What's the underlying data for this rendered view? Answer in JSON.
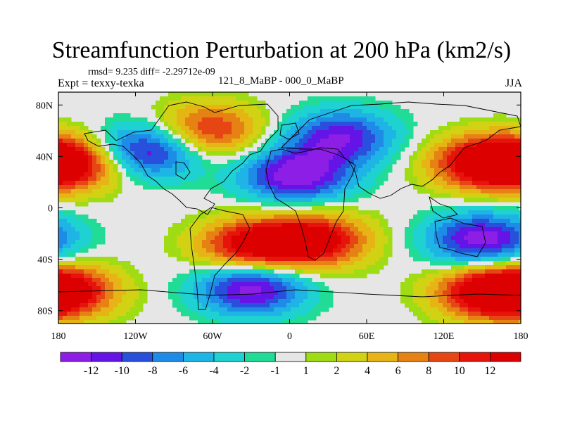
{
  "chart_data": {
    "type": "heatmap",
    "title": "Streamfunction Perturbation at 200 hPa (km2/s)",
    "stats_line": "rmsd= 9.235  diff= -2.29712e-09",
    "left_label": "Expt = texxy-texka",
    "center_label": "121_8_MaBP - 000_0_MaBP",
    "right_label": "JJA",
    "x_ticks": [
      "180",
      "120W",
      "60W",
      "0",
      "60E",
      "120E",
      "180"
    ],
    "y_ticks": [
      "80N",
      "40N",
      "0",
      "40S",
      "80S"
    ],
    "xlim": [
      -180,
      180
    ],
    "ylim": [
      -90,
      90
    ],
    "colorbar": {
      "labels": [
        "-12",
        "-10",
        "-8",
        "-6",
        "-4",
        "-2",
        "-1",
        "1",
        "2",
        "4",
        "6",
        "8",
        "10",
        "12"
      ],
      "colors": [
        "#8c1ee6",
        "#6414e6",
        "#2850dc",
        "#1e8ce6",
        "#1eb4e6",
        "#1ed2d2",
        "#20dc96",
        "#e6e6e6",
        "#a0dc14",
        "#d2d214",
        "#e6b414",
        "#e68214",
        "#e64614",
        "#e6140a",
        "#dc0000"
      ]
    },
    "field_features": [
      {
        "lon": -110,
        "lat": 45,
        "value": -12
      },
      {
        "lon": -65,
        "lat": 60,
        "value": 10
      },
      {
        "lon": 5,
        "lat": 25,
        "value": -12
      },
      {
        "lon": 40,
        "lat": 55,
        "value": -10
      },
      {
        "lon": 150,
        "lat": 35,
        "value": 12
      },
      {
        "lon": -170,
        "lat": 35,
        "value": 12
      },
      {
        "lon": -30,
        "lat": -30,
        "value": 12
      },
      {
        "lon": 20,
        "lat": -25,
        "value": 12
      },
      {
        "lon": -30,
        "lat": -62,
        "value": -12
      },
      {
        "lon": 150,
        "lat": -25,
        "value": -12
      },
      {
        "lon": 155,
        "lat": -65,
        "value": 12
      },
      {
        "lon": -175,
        "lat": -65,
        "value": 10
      }
    ]
  }
}
